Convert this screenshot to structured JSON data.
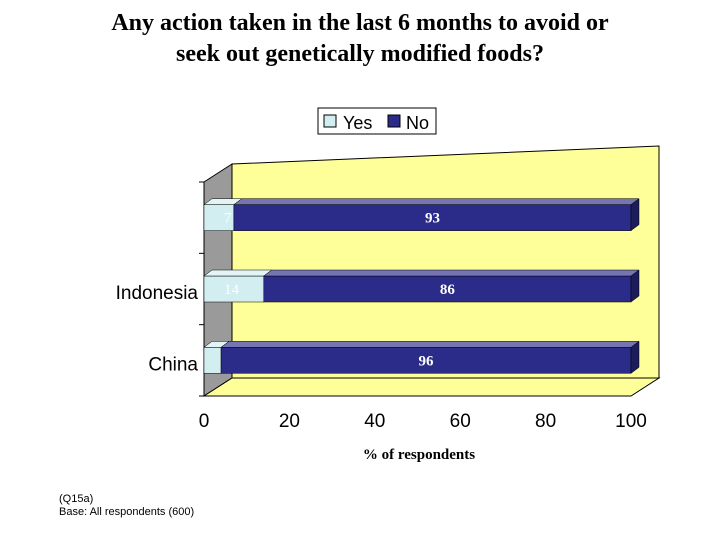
{
  "title_lines": [
    "Any action taken in the last 6 months to avoid or",
    "seek out genetically modified foods?"
  ],
  "footnote_lines": [
    "(Q15a)",
    "Base: All respondents (600)"
  ],
  "chart_data": {
    "type": "bar",
    "orientation": "horizontal",
    "stacked": true,
    "style": "3d",
    "categories": [
      "",
      "Indonesia",
      "China"
    ],
    "series": [
      {
        "name": "Yes",
        "values": [
          7,
          14,
          4
        ],
        "color": "#d2eef0"
      },
      {
        "name": "No",
        "values": [
          93,
          86,
          96
        ],
        "color": "#2b2b8a"
      }
    ],
    "xlabel": "% of respondents",
    "xlim": [
      0,
      100
    ],
    "xticks": [
      0,
      20,
      40,
      60,
      80,
      100
    ],
    "legend_position": "top",
    "plot_background": "#ffff99",
    "wall_color": "#9a9a9a",
    "grid": false
  }
}
